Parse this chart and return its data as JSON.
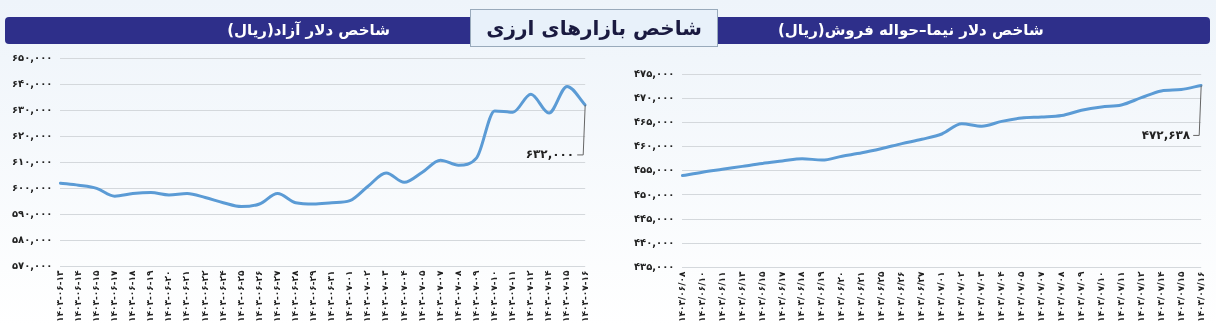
{
  "chart_data": [
    {
      "type": "line",
      "title": "شاخص دلار آزاد(ریال)",
      "annotations": [
        "شاخص بازارهای ارزی",
        {
          "text": "۶۳۲,۰۰۰",
          "x": "۱۴۰۳-۰۷-۱۶",
          "y": 632000
        }
      ],
      "categories": [
        "۱۴۰۳-۰۶-۱۳",
        "۱۴۰۳-۰۶-۱۴",
        "۱۴۰۳-۰۶-۱۵",
        "۱۴۰۳-۰۶-۱۷",
        "۱۴۰۳-۰۶-۱۸",
        "۱۴۰۳-۰۶-۱۹",
        "۱۴۰۳-۰۶-۲۰",
        "۱۴۰۳-۰۶-۲۱",
        "۱۴۰۳-۰۶-۲۲",
        "۱۴۰۳-۰۶-۲۴",
        "۱۴۰۳-۰۶-۲۵",
        "۱۴۰۳-۰۶-۲۶",
        "۱۴۰۳-۰۶-۲۷",
        "۱۴۰۳-۰۶-۲۸",
        "۱۴۰۳-۰۶-۲۹",
        "۱۴۰۳-۰۶-۳۱",
        "۱۴۰۳-۰۷-۰۱",
        "۱۴۰۳-۰۷-۰۲",
        "۱۴۰۳-۰۷-۰۳",
        "۱۴۰۳-۰۷-۰۴",
        "۱۴۰۳-۰۷-۰۵",
        "۱۴۰۳-۰۷-۰۷",
        "۱۴۰۳-۰۷-۰۸",
        "۱۴۰۳-۰۷-۰۹",
        "۱۴۰۳-۰۷-۱۰",
        "۱۴۰۳-۰۷-۱۱",
        "۱۴۰۳-۰۷-۱۲",
        "۱۴۰۳-۰۷-۱۴",
        "۱۴۰۳-۰۷-۱۵",
        "۱۴۰۳-۰۷-۱۶"
      ],
      "series": [
        {
          "color": "#5b9bd5",
          "values": [
            602000,
            601200,
            600000,
            597000,
            598000,
            598400,
            597500,
            598000,
            596500,
            594500,
            593000,
            594000,
            598000,
            594500,
            594000,
            594500,
            595300,
            600800,
            605900,
            602300,
            606200,
            610800,
            608900,
            611700,
            629700,
            629200,
            636100,
            628900,
            639100,
            632000
          ]
        }
      ],
      "ylim": [
        570000,
        650000
      ],
      "yticks": [
        {
          "value": 570000,
          "label": "۵۷۰,۰۰۰"
        },
        {
          "value": 580000,
          "label": "۵۸۰,۰۰۰"
        },
        {
          "value": 590000,
          "label": "۵۹۰,۰۰۰"
        },
        {
          "value": 600000,
          "label": "۶۰۰,۰۰۰"
        },
        {
          "value": 610000,
          "label": "۶۱۰,۰۰۰"
        },
        {
          "value": 620000,
          "label": "۶۲۰,۰۰۰"
        },
        {
          "value": 630000,
          "label": "۶۳۰,۰۰۰"
        },
        {
          "value": 640000,
          "label": "۶۴۰,۰۰۰"
        },
        {
          "value": 650000,
          "label": "۶۵۰,۰۰۰"
        }
      ],
      "grid": "y",
      "legend": false,
      "marker": "none",
      "line_style": "solid"
    },
    {
      "type": "line",
      "title": "شاخص دلار نیما–حواله فروش(ریال)",
      "annotations": [
        {
          "text": "۴۷۲,۶۳۸",
          "x": "۱۴۰۳/۰۷/۱۶",
          "y": 472638
        }
      ],
      "categories": [
        "۱۴۰۳/۰۶/۰۸",
        "۱۴۰۳/۰۶/۱۰",
        "۱۴۰۳/۰۶/۱۱",
        "۱۴۰۳/۰۶/۱۳",
        "۱۴۰۳/۰۶/۱۵",
        "۱۴۰۳/۰۶/۱۷",
        "۱۴۰۳/۰۶/۱۸",
        "۱۴۰۳/۰۶/۱۹",
        "۱۴۰۳/۰۶/۲۰",
        "۱۴۰۳/۰۶/۲۱",
        "۱۴۰۳/۰۶/۲۵",
        "۱۴۰۳/۰۶/۲۶",
        "۱۴۰۳/۰۶/۲۷",
        "۱۴۰۳/۰۷/۰۱",
        "۱۴۰۳/۰۷/۰۲",
        "۱۴۰۳/۰۷/۰۳",
        "۱۴۰۳/۰۷/۰۴",
        "۱۴۰۳/۰۷/۰۵",
        "۱۴۰۳/۰۷/۰۷",
        "۱۴۰۳/۰۷/۰۸",
        "۱۴۰۳/۰۷/۰۹",
        "۱۴۰۳/۰۷/۱۰",
        "۱۴۰۳/۰۷/۱۱",
        "۱۴۰۳/۰۷/۱۲",
        "۱۴۰۳/۰۷/۱۴",
        "۱۴۰۳/۰۷/۱۵",
        "۱۴۰۳/۰۷/۱۶"
      ],
      "series": [
        {
          "color": "#5b9bd5",
          "values": [
            454000,
            454700,
            455300,
            455900,
            456500,
            457000,
            457500,
            457200,
            458000,
            458700,
            459600,
            460600,
            461500,
            462600,
            464700,
            464200,
            465200,
            465900,
            466100,
            466400,
            467500,
            468200,
            468600,
            470100,
            471500,
            471800,
            472638
          ]
        }
      ],
      "ylim": [
        435000,
        475000
      ],
      "yticks": [
        {
          "value": 435000,
          "label": "۴۳۵,۰۰۰"
        },
        {
          "value": 440000,
          "label": "۴۴۰,۰۰۰"
        },
        {
          "value": 445000,
          "label": "۴۴۵,۰۰۰"
        },
        {
          "value": 450000,
          "label": "۴۵۰,۰۰۰"
        },
        {
          "value": 455000,
          "label": "۴۵۵,۰۰۰"
        },
        {
          "value": 460000,
          "label": "۴۶۰,۰۰۰"
        },
        {
          "value": 465000,
          "label": "۴۶۵,۰۰۰"
        },
        {
          "value": 470000,
          "label": "۴۷۰,۰۰۰"
        },
        {
          "value": 475000,
          "label": "۴۷۵,۰۰۰"
        }
      ],
      "grid": "y",
      "legend": false,
      "marker": "none",
      "line_style": "solid"
    }
  ]
}
